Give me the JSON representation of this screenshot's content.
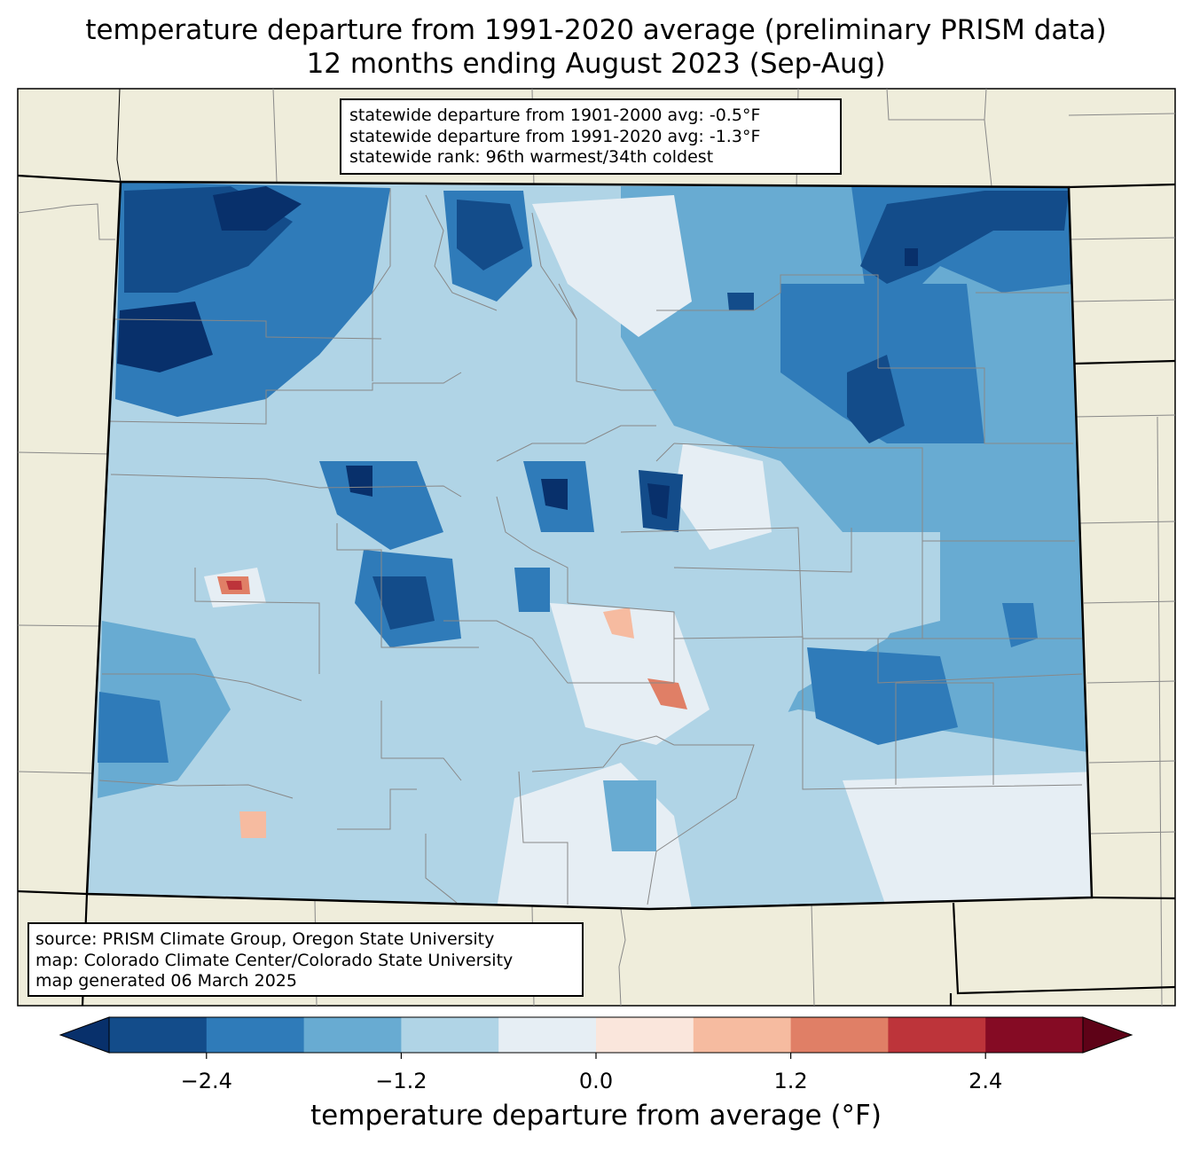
{
  "title": {
    "line1": "temperature departure from 1991-2020 average (preliminary PRISM data)",
    "line2": "12 months ending August 2023 (Sep-Aug)"
  },
  "stats_box": {
    "line1": "statewide departure from 1901-2000 avg: -0.5°F",
    "line2": "statewide departure from 1991-2020 avg: -1.3°F",
    "line3": "statewide rank: 96th warmest/34th coldest"
  },
  "source_box": {
    "line1": "source: PRISM Climate Group, Oregon State University",
    "line2": "map: Colorado Climate Center/Colorado State University",
    "line3": "map generated 06 March 2025"
  },
  "colorbar": {
    "label": "temperature departure from average (°F)",
    "ticks": [
      {
        "label": "−2.4",
        "value": -2.4
      },
      {
        "label": "−1.2",
        "value": -1.2
      },
      {
        "label": "0.0",
        "value": 0.0
      },
      {
        "label": "1.2",
        "value": 1.2
      },
      {
        "label": "2.4",
        "value": 2.4
      }
    ],
    "range": [
      -3.0,
      3.0
    ],
    "step": 0.6,
    "colors": [
      "#08306b",
      "#134c8a",
      "#2f7bb9",
      "#68abd2",
      "#b0d4e6",
      "#e6eef4",
      "#fae6dc",
      "#f6bba0",
      "#e07f66",
      "#bd343a",
      "#850b24",
      "#5e0217"
    ]
  },
  "map_colors": {
    "background": "#efeddb",
    "state_border": "#000000",
    "county_lines": "#888888"
  }
}
